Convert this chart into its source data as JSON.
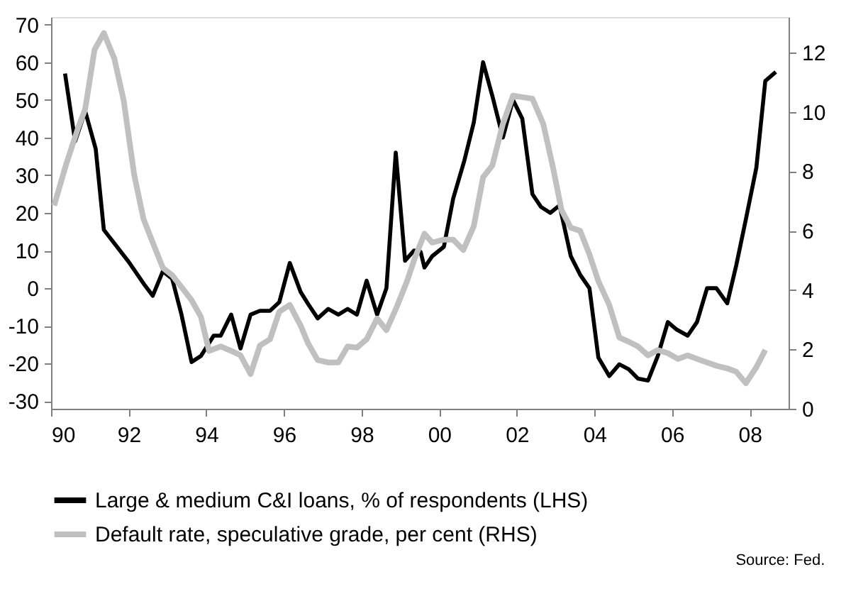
{
  "chart_data": {
    "type": "line",
    "xlim": [
      1990,
      2009
    ],
    "xticks": [
      {
        "value": 1990,
        "label": "90"
      },
      {
        "value": 1992,
        "label": "92"
      },
      {
        "value": 1994,
        "label": "94"
      },
      {
        "value": 1996,
        "label": "96"
      },
      {
        "value": 1998,
        "label": "98"
      },
      {
        "value": 2000,
        "label": "00"
      },
      {
        "value": 2002,
        "label": "02"
      },
      {
        "value": 2004,
        "label": "04"
      },
      {
        "value": 2006,
        "label": "06"
      },
      {
        "value": 2008,
        "label": "08"
      }
    ],
    "ylim": [
      -32,
      72
    ],
    "yticks": [
      -30,
      -20,
      -10,
      0,
      10,
      20,
      30,
      40,
      50,
      60,
      70
    ],
    "y2lim": [
      0,
      13.2
    ],
    "y2ticks": [
      0,
      2,
      4,
      6,
      8,
      10,
      12
    ],
    "grid": false,
    "legend": "bottom",
    "annotations": [
      "Source: Fed."
    ],
    "series": [
      {
        "name": "Large & medium C&I loans, % of respondents (LHS)",
        "color": "#000000",
        "axis": "y",
        "x": [
          1990.36,
          1990.62,
          1990.88,
          1991.15,
          1991.36,
          1992.0,
          1992.4,
          1992.62,
          1992.88,
          1993.12,
          1993.36,
          1993.62,
          1993.86,
          1994.19,
          1994.37,
          1994.64,
          1994.88,
          1995.14,
          1995.38,
          1995.64,
          1995.88,
          1996.15,
          1996.43,
          1996.63,
          1996.87,
          1997.14,
          1997.4,
          1997.64,
          1997.88,
          1998.13,
          1998.4,
          1998.64,
          1998.88,
          1999.12,
          1999.35,
          1999.52,
          1999.62,
          1999.82,
          2000.12,
          2000.36,
          2000.65,
          2000.89,
          2001.13,
          2001.37,
          2001.64,
          2001.9,
          2002.14,
          2002.4,
          2002.62,
          2002.86,
          2003.1,
          2003.39,
          2003.63,
          2003.87,
          2004.1,
          2004.38,
          2004.64,
          2004.88,
          2005.12,
          2005.38,
          2005.63,
          2005.89,
          2006.12,
          2006.4,
          2006.64,
          2006.9,
          2007.14,
          2007.42,
          2007.65,
          2007.9,
          2008.17,
          2008.4,
          2008.67
        ],
        "values": [
          57,
          39,
          47,
          37,
          15.5,
          7,
          1,
          -2,
          4.5,
          2.5,
          -7,
          -19.6,
          -18,
          -12.6,
          -12.6,
          -7,
          -16,
          -7,
          -6,
          -6,
          -3.7,
          6.7,
          -1,
          -4.3,
          -8,
          -5.5,
          -7,
          -5.5,
          -7,
          2,
          -7,
          0,
          36,
          7.3,
          10,
          9.7,
          5.5,
          8.5,
          11,
          23.8,
          34,
          44,
          60,
          51,
          40,
          50,
          45,
          25,
          21.6,
          20,
          22,
          8.5,
          3.6,
          0,
          -18.4,
          -23.3,
          -20.2,
          -21.5,
          -24,
          -24.5,
          -18,
          -9,
          -11,
          -12.6,
          -9,
          0,
          0,
          -4,
          6,
          18.3,
          32,
          55,
          57.4
        ]
      },
      {
        "name": "Default rate, speculative grade, per cent (RHS)",
        "color": "#c0c0c0",
        "axis": "y2",
        "x": [
          1990.08,
          1990.38,
          1990.68,
          1990.88,
          1991.12,
          1991.36,
          1991.63,
          1991.87,
          1992.14,
          1992.38,
          1992.62,
          1992.88,
          1993.12,
          1993.36,
          1993.62,
          1993.86,
          1994.07,
          1994.37,
          1994.64,
          1994.88,
          1995.14,
          1995.38,
          1995.64,
          1995.88,
          1996.15,
          1996.43,
          1996.63,
          1996.87,
          1997.14,
          1997.4,
          1997.64,
          1997.88,
          1998.13,
          1998.4,
          1998.64,
          1998.88,
          1999.17,
          1999.35,
          1999.62,
          1999.82,
          2000.12,
          2000.36,
          2000.62,
          2000.89,
          2001.13,
          2001.37,
          2001.64,
          2001.9,
          2002.14,
          2002.4,
          2002.68,
          2002.92,
          2003.15,
          2003.39,
          2003.63,
          2003.87,
          2004.1,
          2004.38,
          2004.64,
          2004.88,
          2005.12,
          2005.38,
          2005.63,
          2005.89,
          2006.15,
          2006.4,
          2006.67,
          2006.9,
          2007.14,
          2007.42,
          2007.65,
          2007.9,
          2008.17,
          2008.4
        ],
        "values": [
          6.85,
          8.2,
          9.4,
          10.1,
          12.1,
          12.66,
          11.8,
          10.4,
          7.9,
          6.4,
          5.6,
          4.75,
          4.5,
          4.1,
          3.66,
          3.1,
          1.95,
          2.1,
          1.95,
          1.8,
          1.17,
          2.13,
          2.34,
          3.27,
          3.5,
          2.8,
          2.18,
          1.64,
          1.56,
          1.56,
          2.1,
          2.06,
          2.34,
          3.04,
          2.65,
          3.35,
          4.3,
          5.0,
          5.9,
          5.6,
          5.7,
          5.7,
          5.35,
          6.15,
          7.8,
          8.2,
          9.6,
          10.55,
          10.5,
          10.45,
          9.6,
          8.2,
          6.7,
          6.1,
          6.0,
          5.2,
          4.3,
          3.5,
          2.4,
          2.26,
          2.1,
          1.8,
          1.98,
          1.87,
          1.68,
          1.8,
          1.67,
          1.56,
          1.45,
          1.36,
          1.25,
          0.86,
          1.4,
          1.98
        ]
      }
    ]
  }
}
